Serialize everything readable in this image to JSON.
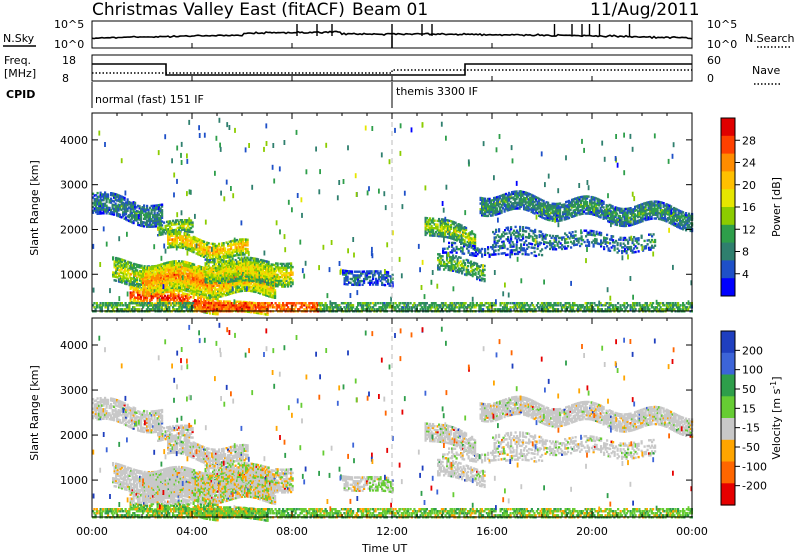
{
  "header": {
    "station": "Christmas Valley East (fitACF)",
    "beam": "Beam 01",
    "date": "11/Aug/2011"
  },
  "strip": {
    "nsky_label": "N.Sky",
    "nsky_ticks": [
      "10^5",
      "10^0"
    ],
    "nsearch_label": "N.Search",
    "nsearch_ticks": [
      "10^5",
      "10^0"
    ],
    "freq_label": "Freq.",
    "freq_unit": "[MHz]",
    "freq_ticks": [
      "18",
      "8"
    ],
    "nave_label": "Nave",
    "nave_ticks": [
      "60",
      "0"
    ],
    "cpid_label": "CPID",
    "cpid_modes": [
      "normal (fast) 151 IF",
      "themis 3300 IF"
    ]
  },
  "panels": {
    "ylabel": "Slant Range [km]",
    "yticks": [
      "4000",
      "3000",
      "2000",
      "1000"
    ],
    "xticks": [
      "00:00",
      "04:00",
      "08:00",
      "12:00",
      "16:00",
      "20:00",
      "00:00"
    ],
    "xlabel": "Time UT"
  },
  "colorbars": {
    "power": {
      "label": "Power [dB]",
      "ticks": [
        "28",
        "24",
        "20",
        "16",
        "12",
        "8",
        "4"
      ],
      "colors": [
        "#e00000",
        "#ff4000",
        "#ff8c00",
        "#ffc000",
        "#e6e600",
        "#8ccc00",
        "#2e9e4a",
        "#2f7f6e",
        "#1e50c8",
        "#0000ff"
      ]
    },
    "velocity": {
      "label": "Velocity [m s",
      "label_sup": "-1",
      "label_end": "]",
      "ticks": [
        "200",
        "100",
        "50",
        "15",
        "-15",
        "-50",
        "-100",
        "-200"
      ],
      "colors": [
        "#1f3fbf",
        "#3c64d8",
        "#2e9e4a",
        "#66cc33",
        "#c8c8c8",
        "#ffa500",
        "#ff6600",
        "#e60000"
      ]
    }
  },
  "chart_data": [
    {
      "type": "line",
      "title": "Christmas Valley East (fitACF) Beam 01 11/Aug/2011",
      "series": [
        {
          "name": "N.Sky",
          "x": [
            "00:00",
            "04:00",
            "08:00",
            "12:00",
            "16:00",
            "20:00",
            "24:00"
          ],
          "values": [
            1.0,
            1.3,
            1.5,
            1.2,
            1.1,
            1.3,
            1.2
          ]
        },
        {
          "name": "Freq.",
          "x": [
            "00:00",
            "03:00",
            "03:00",
            "12:00",
            "15:00",
            "15:00",
            "24:00"
          ],
          "values": [
            16.5,
            16.5,
            10.5,
            10.5,
            10.5,
            16.0,
            16.0
          ]
        },
        {
          "name": "Nave",
          "x": [
            "00:00",
            "03:00",
            "12:00",
            "15:00",
            "24:00"
          ],
          "values": [
            24,
            30,
            30,
            20,
            20
          ]
        }
      ]
    },
    {
      "type": "heatmap",
      "title": "Power [dB]",
      "x": [
        "00:00",
        "04:00",
        "08:00",
        "12:00",
        "16:00",
        "20:00",
        "00:00"
      ],
      "ylim": [
        180,
        4600
      ],
      "ylabel": "Slant Range [km]",
      "xlabel": "Time UT",
      "colorbar_ticks": [
        4,
        8,
        12,
        16,
        20,
        24,
        28
      ]
    },
    {
      "type": "heatmap",
      "title": "Velocity [m s-1]",
      "x": [
        "00:00",
        "04:00",
        "08:00",
        "12:00",
        "16:00",
        "20:00",
        "00:00"
      ],
      "ylim": [
        180,
        4600
      ],
      "ylabel": "Slant Range [km]",
      "xlabel": "Time UT",
      "colorbar_ticks": [
        -200,
        -100,
        -50,
        -15,
        15,
        50,
        100,
        200
      ]
    }
  ]
}
